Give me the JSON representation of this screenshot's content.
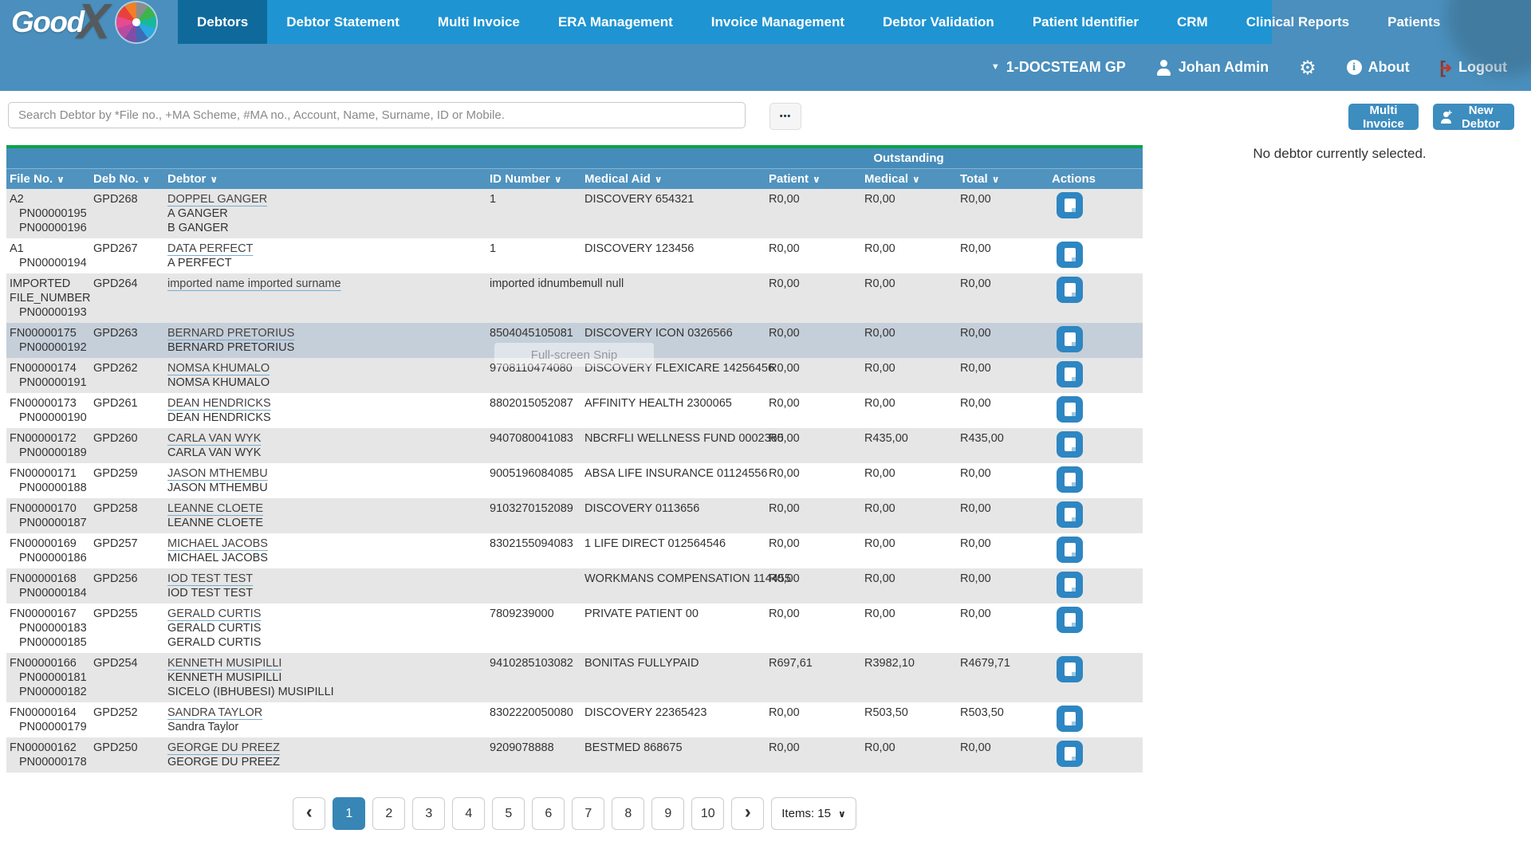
{
  "brand": {
    "good": "Good",
    "x": "X"
  },
  "nav": {
    "items": [
      {
        "label": "Debtors",
        "active": true
      },
      {
        "label": "Debtor Statement",
        "active": false
      },
      {
        "label": "Multi Invoice",
        "active": false
      },
      {
        "label": "ERA Management",
        "active": false
      },
      {
        "label": "Invoice Management",
        "active": false
      },
      {
        "label": "Debtor Validation",
        "active": false
      },
      {
        "label": "Patient Identifier",
        "active": false
      },
      {
        "label": "CRM",
        "active": false
      },
      {
        "label": "Clinical Reports",
        "active": false
      },
      {
        "label": "Patients",
        "active": false
      }
    ]
  },
  "userbar": {
    "practice": "1-DOCSTEAM GP",
    "user": "Johan Admin",
    "about_label": "About",
    "logout_label": "Logout"
  },
  "toolbar": {
    "search_placeholder": "Search Debtor by *File no., +MA Scheme, #MA no., Account, Name, Surname, ID or Mobile.",
    "more_label": "•••",
    "multi_invoice_label": "Multi Invoice",
    "new_debtor_label": "New Debtor"
  },
  "side_panel": {
    "message": "No debtor currently selected."
  },
  "table": {
    "outstanding_label": "Outstanding",
    "columns": [
      {
        "label": "File No.",
        "sortable": true
      },
      {
        "label": "Deb No.",
        "sortable": true
      },
      {
        "label": "Debtor",
        "sortable": true
      },
      {
        "label": "ID Number",
        "sortable": true
      },
      {
        "label": "Medical Aid",
        "sortable": true
      },
      {
        "label": "Patient",
        "sortable": true
      },
      {
        "label": "Medical",
        "sortable": true
      },
      {
        "label": "Total",
        "sortable": true
      },
      {
        "label": "Actions",
        "sortable": false
      }
    ],
    "rows": [
      {
        "file": "A2",
        "pns": [
          "PN00000195",
          "PN00000196"
        ],
        "deb": "GPD268",
        "debtor": "DOPPEL GANGER",
        "patients": [
          "A GANGER",
          "B GANGER"
        ],
        "id": "1",
        "medical_aid": "DISCOVERY 654321",
        "outstanding_patient": "R0,00",
        "outstanding_medical": "R0,00",
        "outstanding_total": "R0,00",
        "selected": false
      },
      {
        "file": "A1",
        "pns": [
          "PN00000194"
        ],
        "deb": "GPD267",
        "debtor": "DATA PERFECT",
        "patients": [
          "A PERFECT"
        ],
        "id": "1",
        "medical_aid": "DISCOVERY 123456",
        "outstanding_patient": "R0,00",
        "outstanding_medical": "R0,00",
        "outstanding_total": "R0,00",
        "selected": false
      },
      {
        "file": "IMPORTED FILE_NUMBER",
        "pns": [
          "PN00000193"
        ],
        "deb": "GPD264",
        "debtor": "imported name imported surname",
        "patients": [],
        "id": "imported idnumber",
        "medical_aid": "null null",
        "outstanding_patient": "R0,00",
        "outstanding_medical": "R0,00",
        "outstanding_total": "R0,00",
        "selected": false
      },
      {
        "file": "FN00000175",
        "pns": [
          "PN00000192"
        ],
        "deb": "GPD263",
        "debtor": "BERNARD PRETORIUS",
        "patients": [
          "BERNARD PRETORIUS"
        ],
        "id": "8504045105081",
        "medical_aid": "DISCOVERY ICON 0326566",
        "outstanding_patient": "R0,00",
        "outstanding_medical": "R0,00",
        "outstanding_total": "R0,00",
        "selected": true
      },
      {
        "file": "FN00000174",
        "pns": [
          "PN00000191"
        ],
        "deb": "GPD262",
        "debtor": "NOMSA KHUMALO",
        "patients": [
          "NOMSA KHUMALO"
        ],
        "id": "9708110474080",
        "medical_aid": "DISCOVERY FLEXICARE 14256456",
        "outstanding_patient": "R0,00",
        "outstanding_medical": "R0,00",
        "outstanding_total": "R0,00",
        "selected": false
      },
      {
        "file": "FN00000173",
        "pns": [
          "PN00000190"
        ],
        "deb": "GPD261",
        "debtor": "DEAN HENDRICKS",
        "patients": [
          "DEAN HENDRICKS"
        ],
        "id": "8802015052087",
        "medical_aid": "AFFINITY HEALTH 2300065",
        "outstanding_patient": "R0,00",
        "outstanding_medical": "R0,00",
        "outstanding_total": "R0,00",
        "selected": false
      },
      {
        "file": "FN00000172",
        "pns": [
          "PN00000189"
        ],
        "deb": "GPD260",
        "debtor": "CARLA VAN WYK",
        "patients": [
          "CARLA VAN WYK"
        ],
        "id": "9407080041083",
        "medical_aid": "NBCRFLI WELLNESS FUND 0002365",
        "outstanding_patient": "R0,00",
        "outstanding_medical": "R435,00",
        "outstanding_total": "R435,00",
        "selected": false
      },
      {
        "file": "FN00000171",
        "pns": [
          "PN00000188"
        ],
        "deb": "GPD259",
        "debtor": "JASON MTHEMBU",
        "patients": [
          "JASON MTHEMBU"
        ],
        "id": "9005196084085",
        "medical_aid": "ABSA LIFE INSURANCE 01124556",
        "outstanding_patient": "R0,00",
        "outstanding_medical": "R0,00",
        "outstanding_total": "R0,00",
        "selected": false
      },
      {
        "file": "FN00000170",
        "pns": [
          "PN00000187"
        ],
        "deb": "GPD258",
        "debtor": "LEANNE CLOETE",
        "patients": [
          "LEANNE CLOETE"
        ],
        "id": "9103270152089",
        "medical_aid": "DISCOVERY 0113656",
        "outstanding_patient": "R0,00",
        "outstanding_medical": "R0,00",
        "outstanding_total": "R0,00",
        "selected": false
      },
      {
        "file": "FN00000169",
        "pns": [
          "PN00000186"
        ],
        "deb": "GPD257",
        "debtor": "MICHAEL JACOBS",
        "patients": [
          "MICHAEL JACOBS"
        ],
        "id": "8302155094083",
        "medical_aid": "1 LIFE DIRECT 012564546",
        "outstanding_patient": "R0,00",
        "outstanding_medical": "R0,00",
        "outstanding_total": "R0,00",
        "selected": false
      },
      {
        "file": "FN00000168",
        "pns": [
          "PN00000184"
        ],
        "deb": "GPD256",
        "debtor": "IOD TEST TEST",
        "patients": [
          "IOD TEST TEST"
        ],
        "id": "",
        "medical_aid": "WORKMANS COMPENSATION 114455",
        "outstanding_patient": "R0,00",
        "outstanding_medical": "R0,00",
        "outstanding_total": "R0,00",
        "selected": false
      },
      {
        "file": "FN00000167",
        "pns": [
          "PN00000183",
          "PN00000185"
        ],
        "deb": "GPD255",
        "debtor": "GERALD CURTIS",
        "patients": [
          "GERALD CURTIS",
          "GERALD CURTIS"
        ],
        "id": "7809239000",
        "medical_aid": "PRIVATE PATIENT 00",
        "outstanding_patient": "R0,00",
        "outstanding_medical": "R0,00",
        "outstanding_total": "R0,00",
        "selected": false
      },
      {
        "file": "FN00000166",
        "pns": [
          "PN00000181",
          "PN00000182"
        ],
        "deb": "GPD254",
        "debtor": "KENNETH MUSIPILLI",
        "patients": [
          "KENNETH MUSIPILLI",
          "SICELO (IBHUBESI) MUSIPILLI"
        ],
        "id": "9410285103082",
        "medical_aid": "BONITAS FULLYPAID",
        "outstanding_patient": "R697,61",
        "outstanding_medical": "R3982,10",
        "outstanding_total": "R4679,71",
        "selected": false
      },
      {
        "file": "FN00000164",
        "pns": [
          "PN00000179"
        ],
        "deb": "GPD252",
        "debtor": "SANDRA TAYLOR",
        "patients": [
          "Sandra Taylor"
        ],
        "id": "8302220050080",
        "medical_aid": "DISCOVERY 22365423",
        "outstanding_patient": "R0,00",
        "outstanding_medical": "R503,50",
        "outstanding_total": "R503,50",
        "selected": false
      },
      {
        "file": "FN00000162",
        "pns": [
          "PN00000178"
        ],
        "deb": "GPD250",
        "debtor": "GEORGE DU PREEZ",
        "patients": [
          "GEORGE DU PREEZ"
        ],
        "id": "9209078888",
        "medical_aid": "BESTMED 868675",
        "outstanding_patient": "R0,00",
        "outstanding_medical": "R0,00",
        "outstanding_total": "R0,00",
        "selected": false
      }
    ]
  },
  "pagination": {
    "prev": "‹",
    "next": "›",
    "pages": [
      "1",
      "2",
      "3",
      "4",
      "5",
      "6",
      "7",
      "8",
      "9",
      "10"
    ],
    "active_page": "1",
    "items_label": "Items: 15",
    "caret": "∨"
  },
  "icons": {
    "sort": "∨",
    "caret_down": "▼",
    "gear": "⚙"
  },
  "watermark": "Full-screen Snip",
  "colors": {
    "nav_blue": "#1e94d2",
    "nav_active": "#0f6a9b",
    "bar_blue": "#4a8fbd",
    "header_green": "#0da24b",
    "header_row": "#5093bf",
    "outstanding_row": "#468cba",
    "row_alt": "#e6e6e6",
    "selected_row": "#c5cfda",
    "action_button": "#2e86c2",
    "button_blue": "#3d8dbf",
    "active_page": "#3786b5",
    "logout_red": "#c0392b"
  }
}
